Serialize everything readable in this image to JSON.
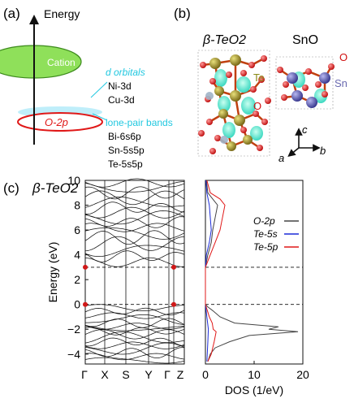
{
  "panel_a": {
    "label": "(a)",
    "axis_label": "Energy",
    "cation_label": "Cation",
    "o2p_label": "O-2p",
    "d_orbitals_title": "d orbitals",
    "d_orbitals": [
      "Ni-3d",
      "Cu-3d"
    ],
    "lone_pair_title": "lone-pair bands",
    "lone_pair": [
      "Bi-6s6p",
      "Sn-5s5p",
      "Te-5s5p"
    ]
  },
  "panel_b": {
    "label": "(b)",
    "title_left": "β-TeO2",
    "title_right": "SnO",
    "atom_labels": {
      "te": "Te",
      "o_left": "O",
      "o_right": "O",
      "sn": "Sn"
    },
    "axes": {
      "c": "c",
      "b": "b",
      "a": "a"
    }
  },
  "panel_c": {
    "label": "(c)",
    "title": "β-TeO2",
    "ylabel": "Energy (eV)",
    "yticks": [
      "10",
      "8",
      "6",
      "4",
      "2",
      "0",
      "−2",
      "−4"
    ],
    "kpoints": [
      "Γ",
      "X",
      "S",
      "Y",
      "Γ",
      "Z"
    ],
    "dos_xlabel": "DOS (1/eV)",
    "dos_xticks": [
      "0",
      "10",
      "20"
    ],
    "legend": [
      "O-2p",
      "Te-5s",
      "Te-5p"
    ]
  },
  "colors": {
    "cation": "#8fe05a",
    "o2p": "#e01818",
    "lone": "#bfeefa",
    "d_text": "#22c8e0",
    "te_s": "#1c2cd8",
    "te_p": "#e01818",
    "o_dos": "#444444"
  },
  "chart_data": {
    "type": "line",
    "title": "β-TeO2",
    "ylabel": "Energy (eV)",
    "ylim": [
      -4.8,
      10
    ],
    "categories": [
      "Γ",
      "X",
      "S",
      "Y",
      "Γ",
      "Z"
    ],
    "dos": {
      "xlabel": "DOS (1/eV)",
      "xlim": [
        0,
        20
      ],
      "series": [
        {
          "name": "O-2p",
          "energy": [
            -4.6,
            -4,
            -3.5,
            -3,
            -2.5,
            -2.2,
            -2,
            -1.8,
            -1.5,
            -1,
            -0.5,
            -0.2,
            0,
            0.5,
            3,
            4,
            5,
            6,
            7,
            8,
            8.5,
            9,
            10
          ],
          "values": [
            0.5,
            1,
            2,
            5,
            9,
            19,
            13,
            15,
            6,
            3,
            1.5,
            0.5,
            0,
            0,
            0,
            0.5,
            1.2,
            1.5,
            2,
            2.5,
            1.5,
            0.5,
            0.2
          ]
        },
        {
          "name": "Te-5s",
          "energy": [
            -4.6,
            -3,
            -2,
            -1,
            0,
            0.5,
            3,
            4,
            5,
            6,
            7,
            8,
            9,
            10
          ],
          "values": [
            0.3,
            0.5,
            0.6,
            0.3,
            0,
            0,
            0,
            0.2,
            0.8,
            1.2,
            1,
            0.8,
            0.3,
            0.1
          ]
        },
        {
          "name": "Te-5p",
          "energy": [
            -4.6,
            -4,
            -3,
            -2.2,
            -2,
            -1.5,
            -1,
            -0.5,
            0,
            0.5,
            3,
            4,
            5,
            6,
            7,
            8,
            8.5,
            9,
            10
          ],
          "values": [
            0.5,
            1.2,
            1.8,
            2.2,
            1.6,
            1.4,
            0.8,
            0.4,
            0,
            0,
            0,
            1,
            2,
            3,
            3.5,
            4,
            3,
            1,
            0.3
          ]
        }
      ]
    },
    "reference_lines": [
      0,
      3
    ]
  }
}
